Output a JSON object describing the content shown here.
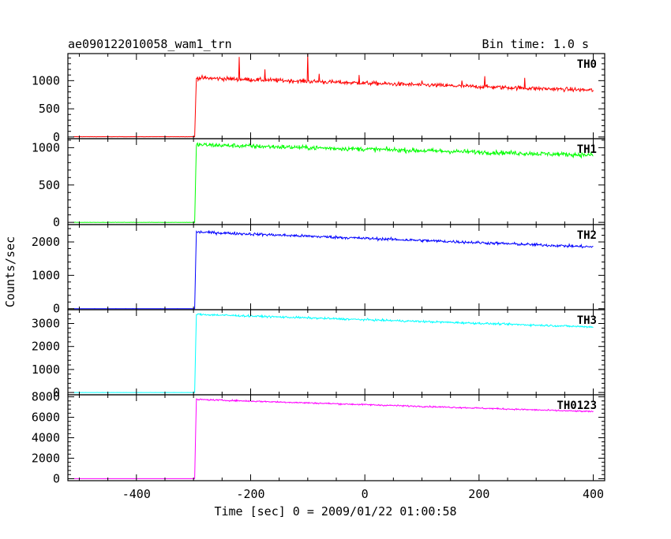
{
  "header": {
    "title": "ae090122010058_wam1_trn",
    "bin_time": "Bin time: 1.0 s"
  },
  "chart_data": {
    "type": "line",
    "xlabel": "Time [sec] 0 = 2009/01/22 01:00:58",
    "ylabel": "Counts/sec",
    "xlim": [
      -520,
      420
    ],
    "x_ticks": [
      -400,
      -200,
      0,
      200,
      400
    ],
    "bin_time_s": 1.0,
    "trigger_time_s": -298,
    "panels": [
      {
        "name": "TH0",
        "color": "#ff0000",
        "ylim": [
          -30,
          1480
        ],
        "y_ticks": [
          0,
          500,
          1000
        ],
        "baseline": 5,
        "start_level": 1050,
        "end_level": 830,
        "noise": 60,
        "spikes": [
          {
            "x": -220,
            "y": 1420
          },
          {
            "x": -175,
            "y": 1200
          },
          {
            "x": -155,
            "y": 1050
          },
          {
            "x": -100,
            "y": 1480
          },
          {
            "x": -80,
            "y": 1120
          },
          {
            "x": -10,
            "y": 1100
          },
          {
            "x": 100,
            "y": 1000
          },
          {
            "x": 170,
            "y": 1000
          },
          {
            "x": 210,
            "y": 1080
          },
          {
            "x": 280,
            "y": 1050
          }
        ]
      },
      {
        "name": "TH1",
        "color": "#00ff00",
        "ylim": [
          -30,
          1120
        ],
        "y_ticks": [
          0,
          500,
          1000
        ],
        "baseline": 0,
        "start_level": 1040,
        "end_level": 900,
        "noise": 50,
        "spikes": []
      },
      {
        "name": "TH2",
        "color": "#0000ff",
        "ylim": [
          -30,
          2520
        ],
        "y_ticks": [
          0,
          1000,
          2000
        ],
        "baseline": 0,
        "start_level": 2300,
        "end_level": 1850,
        "noise": 70,
        "spikes": []
      },
      {
        "name": "TH3",
        "color": "#00ffff",
        "ylim": [
          -100,
          3600
        ],
        "y_ticks": [
          0,
          1000,
          2000,
          3000
        ],
        "baseline": 0,
        "start_level": 3400,
        "end_level": 2850,
        "noise": 70,
        "spikes": []
      },
      {
        "name": "TH0123",
        "color": "#ff00ff",
        "ylim": [
          -200,
          8200
        ],
        "y_ticks": [
          0,
          2000,
          4000,
          6000,
          8000
        ],
        "baseline": 0,
        "start_level": 7750,
        "end_level": 6550,
        "noise": 120,
        "spikes": []
      }
    ]
  }
}
